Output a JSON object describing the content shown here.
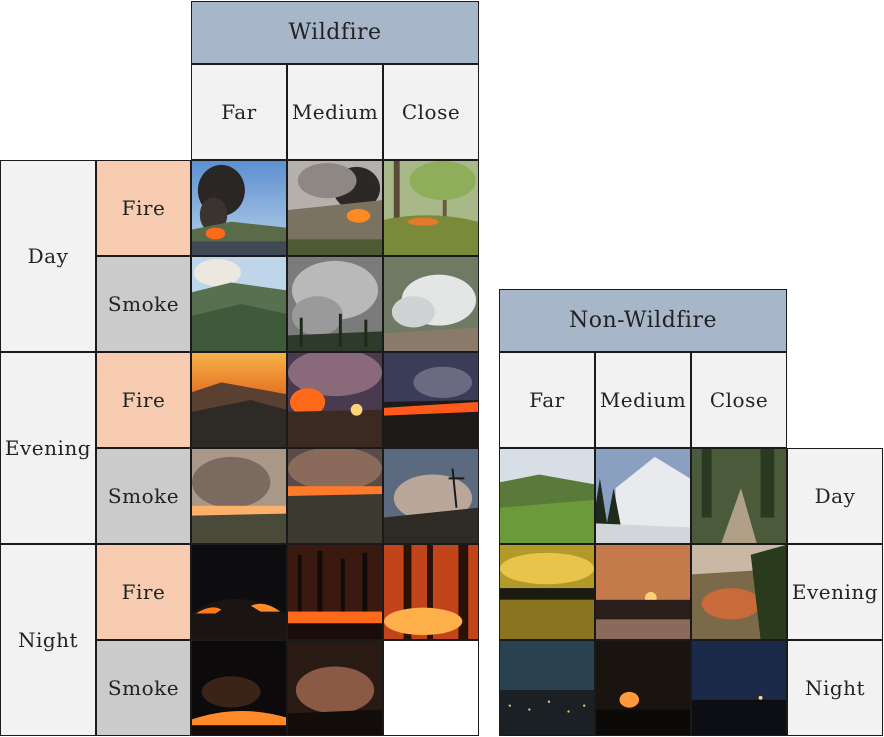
{
  "wildfire": {
    "title": "Wildfire",
    "columns": [
      "Far",
      "Medium",
      "Close"
    ],
    "times": [
      "Day",
      "Evening",
      "Night"
    ],
    "types": [
      "Fire",
      "Smoke"
    ],
    "images": [
      [
        "day-fire-far",
        "day-fire-medium",
        "day-fire-close"
      ],
      [
        "day-smoke-far",
        "day-smoke-medium",
        "day-smoke-close"
      ],
      [
        "evening-fire-far",
        "evening-fire-medium",
        "evening-fire-close"
      ],
      [
        "evening-smoke-far",
        "evening-smoke-medium",
        "evening-smoke-close"
      ],
      [
        "night-fire-far",
        "night-fire-medium",
        "night-fire-close"
      ],
      [
        "night-smoke-far",
        "night-smoke-medium",
        "empty"
      ]
    ]
  },
  "nonwildfire": {
    "title": "Non-Wildfire",
    "columns": [
      "Far",
      "Medium",
      "Close"
    ],
    "times": [
      "Day",
      "Evening",
      "Night"
    ],
    "images": [
      [
        "day-far",
        "day-medium",
        "day-close"
      ],
      [
        "evening-far",
        "evening-medium",
        "evening-close"
      ],
      [
        "night-far",
        "night-medium",
        "night-close"
      ]
    ]
  },
  "colors": {
    "header_fill": "#a7b6c9",
    "subheader_fill": "#f2f2f2",
    "fire_fill": "#f7ccb0",
    "smoke_fill": "#cbcbcb"
  }
}
